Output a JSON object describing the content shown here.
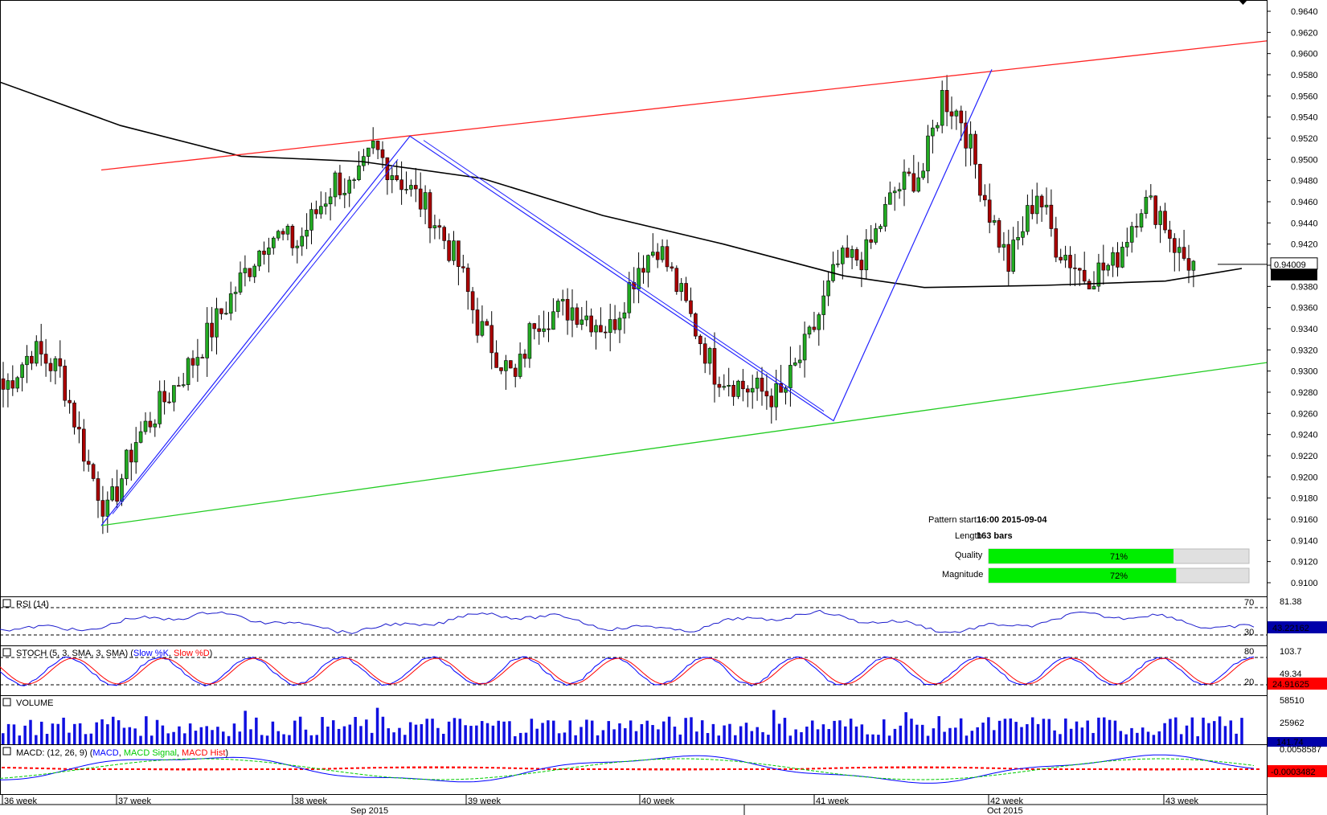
{
  "chart_data": {
    "type": "candlestick",
    "price_axis": {
      "ylim": [
        0.909,
        0.965
      ],
      "ticks": [
        "0.9640",
        "0.9620",
        "0.9600",
        "0.9580",
        "0.9560",
        "0.9540",
        "0.9520",
        "0.9500",
        "0.9480",
        "0.9460",
        "0.9440",
        "0.9420",
        "0.9400",
        "0.9380",
        "0.9360",
        "0.9340",
        "0.9320",
        "0.9300",
        "0.9280",
        "0.9260",
        "0.9240",
        "0.9220",
        "0.9200",
        "0.9180",
        "0.9160",
        "0.9140",
        "0.9120",
        "0.9100"
      ],
      "current_price": "0.94009",
      "ma_price": "0.93933"
    },
    "time_axis": {
      "weeks": [
        "36 week",
        "37 week",
        "38 week",
        "39 week",
        "40 week",
        "41 week",
        "42 week",
        "43 week"
      ],
      "months": [
        "Sep 2015",
        "Oct 2015"
      ]
    },
    "pattern": {
      "start_label": "Pattern start",
      "start_value": "16:00 2015-09-04",
      "length_label": "Length",
      "length_value": "163 bars",
      "quality_label": "Quality",
      "quality_value": "71%",
      "quality_fraction": 0.71,
      "magnitude_label": "Magnitude",
      "magnitude_value": "72%",
      "magnitude_fraction": 0.72
    },
    "zigzag_points": [
      [
        0.9154
      ],
      [
        0.9522
      ],
      [
        0.9253
      ],
      [
        0.9585
      ]
    ],
    "indicators": {
      "rsi": {
        "title": "RSI (14)",
        "levels": [
          "70",
          "30"
        ],
        "top_label": "81.38",
        "value": "43.22162"
      },
      "stoch": {
        "title_prefix": "STOCH (5, 3, SMA, 3, SMA) (",
        "k_label": "Slow %K",
        "sep": ", ",
        "d_label": "Slow %D",
        "title_suffix": ")",
        "levels": [
          "80",
          "20"
        ],
        "top_label": "103.7",
        "mid_label": "49.34",
        "value": "24.91625"
      },
      "volume": {
        "title": "VOLUME",
        "top_label": "58510",
        "mid_label": "25962",
        "value": "141.74"
      },
      "macd": {
        "title_prefix": "MACD: (12, 26, 9) (",
        "macd_label": "MACD",
        "sep": ", ",
        "signal_label": "MACD Signal",
        "hist_label": "MACD Hist",
        "title_suffix": ")",
        "top_label": "0.0058587",
        "value": "-0.0003482"
      }
    },
    "colors": {
      "up": "#22aa22",
      "down": "#aa0000",
      "ma": "#000000",
      "resistance": "#ff2222",
      "support": "#22cc22",
      "zigzag": "#2222ff",
      "rsi": "#1a1acc",
      "stoch_k": "#0000ff",
      "stoch_d": "#ff0000",
      "volume": "#1010e0",
      "macd": "#0000ff",
      "signal": "#00cc00",
      "hist": "#ff0000",
      "bar_fill": "#00ee00",
      "value_box": "#0000aa"
    }
  }
}
